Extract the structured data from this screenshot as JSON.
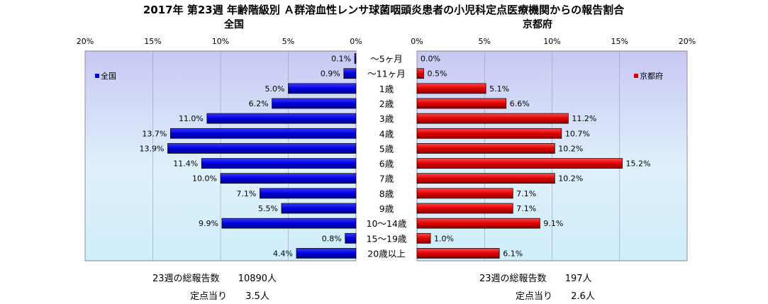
{
  "title": "2017年 第23週 年齢階級別 Ａ群溶血性レンサ球菌咽頭炎患者の小児科定点医療機関からの報告割合",
  "chart_data": {
    "type": "bar",
    "orientation": "horizontal-mirrored",
    "categories": [
      "～5ヶ月",
      "～11ヶ月",
      "1歳",
      "2歳",
      "3歳",
      "4歳",
      "5歳",
      "6歳",
      "7歳",
      "8歳",
      "9歳",
      "10～14歳",
      "15～19歳",
      "20歳以上"
    ],
    "panels": [
      {
        "title": "全国",
        "legend": "全国",
        "color": "#0000dd",
        "xlim": [
          0,
          20
        ],
        "ticks": [
          "0%",
          "5%",
          "10%",
          "15%",
          "20%"
        ],
        "values": [
          0.1,
          0.9,
          5.0,
          6.2,
          11.0,
          13.7,
          13.9,
          11.4,
          10.0,
          7.1,
          5.5,
          9.9,
          0.8,
          4.4
        ],
        "labels": [
          "0.1%",
          "0.9%",
          "5.0%",
          "6.2%",
          "11.0%",
          "13.7%",
          "13.9%",
          "11.4%",
          "10.0%",
          "7.1%",
          "5.5%",
          "9.9%",
          "0.8%",
          "4.4%"
        ]
      },
      {
        "title": "京都府",
        "legend": "京都府",
        "color": "#e00000",
        "xlim": [
          0,
          20
        ],
        "ticks": [
          "0%",
          "5%",
          "10%",
          "15%",
          "20%"
        ],
        "values": [
          0.0,
          0.5,
          5.1,
          6.6,
          11.2,
          10.7,
          10.2,
          15.2,
          10.2,
          7.1,
          7.1,
          9.1,
          1.0,
          6.1
        ],
        "labels": [
          "0.0%",
          "0.5%",
          "5.1%",
          "6.6%",
          "11.2%",
          "10.7%",
          "10.2%",
          "15.2%",
          "10.2%",
          "7.1%",
          "7.1%",
          "9.1%",
          "1.0%",
          "6.1%"
        ]
      }
    ]
  },
  "stats": {
    "national": {
      "total_label": "23週の総報告数",
      "total_value": "10890人",
      "per_label": "定点当り",
      "per_value": "3.5人"
    },
    "kyoto": {
      "total_label": "23週の総報告数",
      "total_value": "197人",
      "per_label": "定点当り",
      "per_value": "2.6人"
    }
  }
}
